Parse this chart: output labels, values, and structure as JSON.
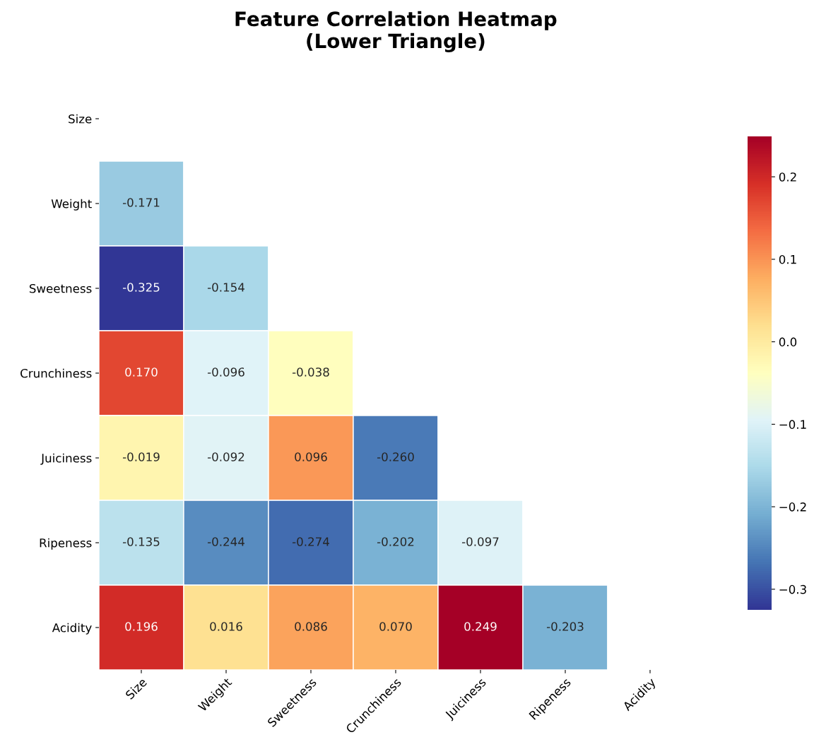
{
  "chart_data": {
    "type": "heatmap",
    "title": "Feature Correlation Heatmap\n(Lower Triangle)",
    "categories": [
      "Size",
      "Weight",
      "Sweetness",
      "Crunchiness",
      "Juiciness",
      "Ripeness",
      "Acidity"
    ],
    "y_categories": [
      "Size",
      "Weight",
      "Sweetness",
      "Crunchiness",
      "Juiciness",
      "Ripeness",
      "Acidity"
    ],
    "cells": [
      [
        null,
        null,
        null,
        null,
        null,
        null,
        null
      ],
      [
        -0.171,
        null,
        null,
        null,
        null,
        null,
        null
      ],
      [
        -0.325,
        -0.154,
        null,
        null,
        null,
        null,
        null
      ],
      [
        0.17,
        -0.096,
        -0.038,
        null,
        null,
        null,
        null
      ],
      [
        -0.019,
        -0.092,
        0.096,
        -0.26,
        null,
        null,
        null
      ],
      [
        -0.135,
        -0.244,
        -0.274,
        -0.202,
        -0.097,
        null,
        null
      ],
      [
        0.196,
        0.016,
        0.086,
        0.07,
        0.249,
        -0.203,
        null
      ]
    ],
    "cell_labels": [
      [
        null,
        null,
        null,
        null,
        null,
        null,
        null
      ],
      [
        "-0.171",
        null,
        null,
        null,
        null,
        null,
        null
      ],
      [
        "-0.325",
        "-0.154",
        null,
        null,
        null,
        null,
        null
      ],
      [
        "0.170",
        "-0.096",
        "-0.038",
        null,
        null,
        null,
        null
      ],
      [
        "-0.019",
        "-0.092",
        "0.096",
        "-0.260",
        null,
        null,
        null
      ],
      [
        "-0.135",
        "-0.244",
        "-0.274",
        "-0.202",
        "-0.097",
        null,
        null
      ],
      [
        "0.196",
        "0.016",
        "0.086",
        "0.070",
        "0.249",
        "-0.203",
        null
      ]
    ],
    "clim": [
      -0.325,
      0.249
    ],
    "cticks": [
      {
        "value": -0.3,
        "label": "−0.3"
      },
      {
        "value": -0.2,
        "label": "−0.2"
      },
      {
        "value": -0.1,
        "label": "−0.1"
      },
      {
        "value": 0.0,
        "label": "0.0"
      },
      {
        "value": 0.1,
        "label": "0.1"
      },
      {
        "value": 0.2,
        "label": "0.2"
      }
    ]
  }
}
